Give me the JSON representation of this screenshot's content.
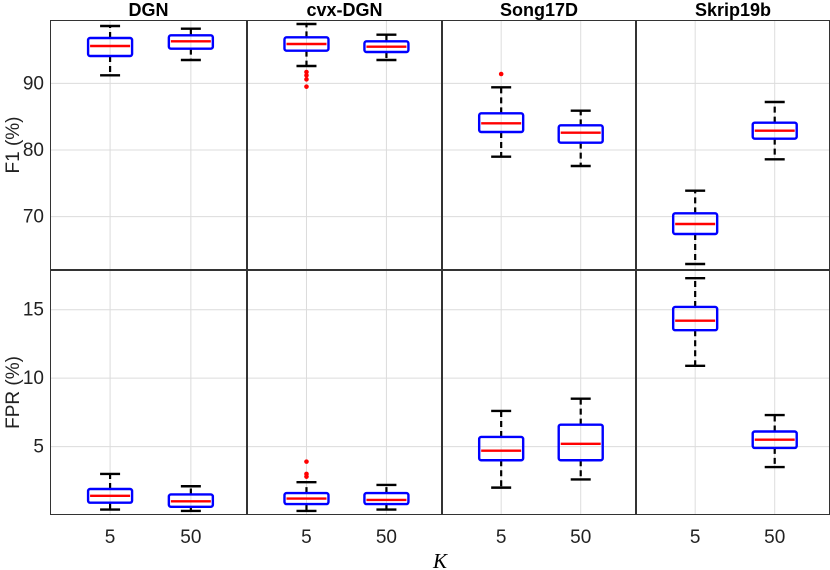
{
  "chart_data": {
    "type": "boxplot",
    "xlabel": "K",
    "categories": [
      "5",
      "50"
    ],
    "panels": [
      "DGN",
      "cvx-DGN",
      "Song17D",
      "Skrip19b"
    ],
    "rows": [
      {
        "ylabel": "F1 (%)",
        "ylim": [
          62,
          99.5
        ],
        "yticks": [
          70,
          80,
          90
        ],
        "grid": true,
        "boxes": [
          [
            {
              "k": "5",
              "wlo": 91.2,
              "q1": 94.1,
              "med": 95.6,
              "q3": 96.8,
              "whi": 98.6,
              "outliers": []
            },
            {
              "k": "50",
              "wlo": 93.5,
              "q1": 95.2,
              "med": 96.3,
              "q3": 97.2,
              "whi": 98.2,
              "outliers": []
            }
          ],
          [
            {
              "k": "5",
              "wlo": 92.6,
              "q1": 94.9,
              "med": 95.9,
              "q3": 96.9,
              "whi": 98.9,
              "outliers": [
                89.5,
                90.6,
                91.2,
                91.7
              ]
            },
            {
              "k": "50",
              "wlo": 93.5,
              "q1": 94.7,
              "med": 95.5,
              "q3": 96.3,
              "whi": 97.3,
              "outliers": []
            }
          ],
          [
            {
              "k": "5",
              "wlo": 79.0,
              "q1": 82.7,
              "med": 84.0,
              "q3": 85.5,
              "whi": 89.4,
              "outliers": [
                91.4
              ]
            },
            {
              "k": "50",
              "wlo": 77.6,
              "q1": 81.1,
              "med": 82.6,
              "q3": 83.7,
              "whi": 85.9,
              "outliers": []
            }
          ],
          [
            {
              "k": "5",
              "wlo": 62.9,
              "q1": 67.4,
              "med": 68.9,
              "q3": 70.5,
              "whi": 73.9,
              "outliers": []
            },
            {
              "k": "50",
              "wlo": 78.6,
              "q1": 81.7,
              "med": 82.9,
              "q3": 84.1,
              "whi": 87.2,
              "outliers": []
            }
          ]
        ]
      },
      {
        "ylabel": "FPR (%)",
        "ylim": [
          0,
          17.9
        ],
        "yticks": [
          5,
          10,
          15
        ],
        "grid": true,
        "boxes": [
          [
            {
              "k": "5",
              "wlo": 0.4,
              "q1": 0.9,
              "med": 1.4,
              "q3": 1.9,
              "whi": 3.0,
              "outliers": []
            },
            {
              "k": "50",
              "wlo": 0.3,
              "q1": 0.6,
              "med": 1.0,
              "q3": 1.5,
              "whi": 2.1,
              "outliers": []
            }
          ],
          [
            {
              "k": "5",
              "wlo": 0.3,
              "q1": 0.8,
              "med": 1.2,
              "q3": 1.6,
              "whi": 2.4,
              "outliers": [
                2.8,
                3.0,
                3.9
              ]
            },
            {
              "k": "50",
              "wlo": 0.4,
              "q1": 0.8,
              "med": 1.1,
              "q3": 1.6,
              "whi": 2.2,
              "outliers": []
            }
          ],
          [
            {
              "k": "5",
              "wlo": 2.0,
              "q1": 4.0,
              "med": 4.7,
              "q3": 5.7,
              "whi": 7.6,
              "outliers": []
            },
            {
              "k": "50",
              "wlo": 2.6,
              "q1": 4.0,
              "med": 5.2,
              "q3": 6.6,
              "whi": 8.5,
              "outliers": []
            }
          ],
          [
            {
              "k": "5",
              "wlo": 10.9,
              "q1": 13.5,
              "med": 14.2,
              "q3": 15.2,
              "whi": 17.3,
              "outliers": []
            },
            {
              "k": "50",
              "wlo": 3.5,
              "q1": 4.9,
              "med": 5.5,
              "q3": 6.1,
              "whi": 7.3,
              "outliers": []
            }
          ]
        ]
      }
    ]
  },
  "colors": {
    "box": "#0000ff",
    "median": "#ff0000",
    "whisker": "#000000",
    "outlier": "#ff0000",
    "grid": "#dcdcdc",
    "axis": "#333333"
  }
}
